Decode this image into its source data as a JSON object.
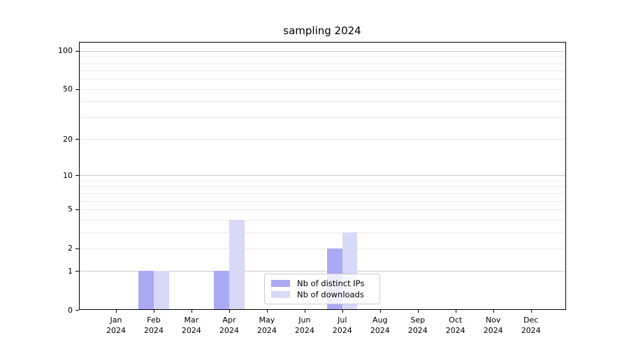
{
  "chart_data": {
    "type": "bar",
    "title": "sampling 2024",
    "x_axis": {
      "categories": [
        "Jan",
        "Feb",
        "Mar",
        "Apr",
        "May",
        "Jun",
        "Jul",
        "Aug",
        "Sep",
        "Oct",
        "Nov",
        "Dec"
      ],
      "year_label": "2024"
    },
    "y_axis": {
      "scale": "log1p",
      "tick_values": [
        0,
        1,
        2,
        5,
        10,
        20,
        50,
        100
      ],
      "major_grid_values": [
        1,
        10,
        100
      ],
      "minor_grid_values": [
        2,
        3,
        4,
        5,
        6,
        7,
        8,
        9,
        20,
        30,
        40,
        50,
        60,
        70,
        80,
        90
      ],
      "ylim": [
        0,
        117.3
      ],
      "grid": "on"
    },
    "series": [
      {
        "name": "Nb of distinct IPs",
        "color": "#a9a9f4",
        "values": [
          0,
          1,
          0,
          1,
          0,
          0,
          2,
          0,
          0,
          0,
          0,
          0
        ]
      },
      {
        "name": "Nb of downloads",
        "color": "#d8d8f8",
        "values": [
          0,
          1,
          0,
          4,
          0,
          0,
          3,
          0,
          0,
          0,
          0,
          0
        ]
      }
    ],
    "legend": {
      "position": "lower center",
      "items": [
        "Nb of distinct IPs",
        "Nb of downloads"
      ]
    }
  },
  "colors": {
    "background": "#ffffff",
    "axis": "#000000",
    "text": "#000000",
    "grid_major": "#c8c8c8",
    "grid_minor": "#eaeaea",
    "legend_border": "#cccccc"
  }
}
